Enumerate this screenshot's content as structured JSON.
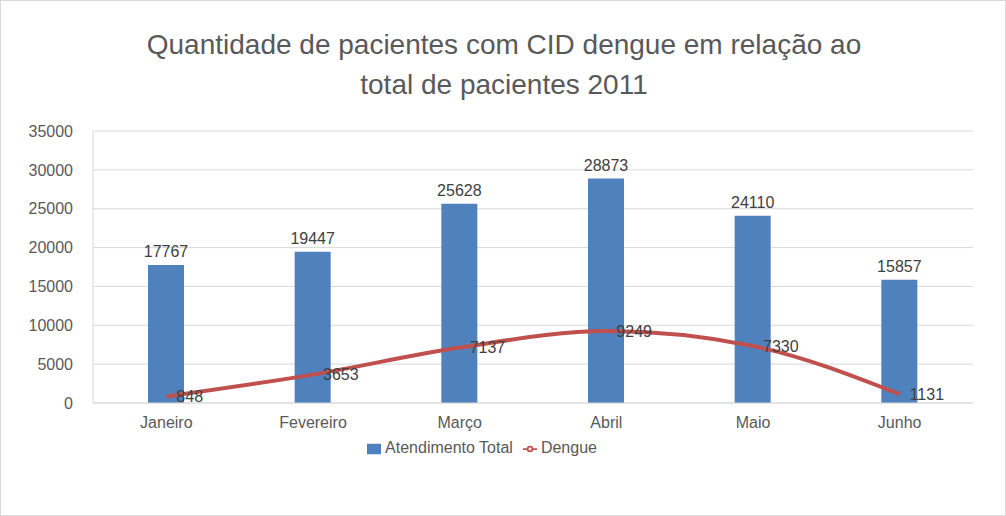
{
  "chart_data": {
    "type": "bar",
    "title": "Quantidade de pacientes com CID dengue em relação ao total de pacientes 2011",
    "categories": [
      "Janeiro",
      "Fevereiro",
      "Março",
      "Abril",
      "Maio",
      "Junho"
    ],
    "series": [
      {
        "name": "Atendimento Total",
        "type": "bar",
        "color": "#4f81bd",
        "values": [
          17767,
          19447,
          25628,
          28873,
          24110,
          15857
        ]
      },
      {
        "name": "Dengue",
        "type": "line",
        "color": "#c0504d",
        "values": [
          848,
          3653,
          7137,
          9249,
          7330,
          1131
        ]
      }
    ],
    "ylim": [
      0,
      35000
    ],
    "yticks": [
      0,
      5000,
      10000,
      15000,
      20000,
      25000,
      30000,
      35000
    ],
    "grid": true,
    "legend": "bottom",
    "data_labels": true
  }
}
